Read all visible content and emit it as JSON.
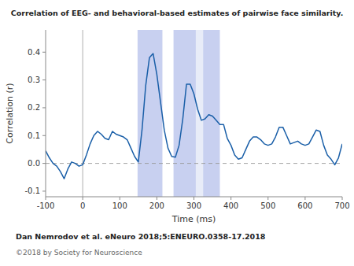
{
  "chart_data": {
    "type": "line",
    "title": "Correlation of EEG- and behavioral-based estimates of pairwise face similarity.",
    "xlabel": "Time (ms)",
    "ylabel": "Correlation (r)",
    "citation": "Dan Nemrodov et al. eNeuro 2018;5:ENEURO.0358-17.2018",
    "copyright": "©2018 by Society for Neuroscience",
    "xlim": [
      -100,
      700
    ],
    "ylim": [
      -0.12,
      0.48
    ],
    "xticks": [
      -100,
      0,
      100,
      200,
      300,
      400,
      500,
      600,
      700
    ],
    "yticks": [
      -0.1,
      {
        "value": 0.0,
        "label": "0.0"
      },
      0.1,
      0.2,
      0.3,
      0.4
    ],
    "grid": false,
    "color": "#1a5fa8",
    "shaded_regions": [
      {
        "x0": 148,
        "x1": 215,
        "color": "#c8d0f0"
      },
      {
        "x0": 245,
        "x1": 370,
        "color": "#c8d0f0"
      },
      {
        "x0": 305,
        "x1": 325,
        "color": "#e8ecf8"
      }
    ],
    "vline_x": 0,
    "hline_y": 0,
    "x": [
      -100,
      -90,
      -80,
      -70,
      -60,
      -50,
      -40,
      -30,
      -20,
      -10,
      0,
      10,
      20,
      30,
      40,
      50,
      60,
      70,
      80,
      90,
      100,
      110,
      120,
      130,
      140,
      150,
      160,
      170,
      180,
      190,
      200,
      210,
      220,
      230,
      240,
      250,
      260,
      270,
      280,
      290,
      300,
      310,
      320,
      330,
      340,
      350,
      360,
      370,
      380,
      390,
      400,
      410,
      420,
      430,
      440,
      450,
      460,
      470,
      480,
      490,
      500,
      510,
      520,
      530,
      540,
      550,
      560,
      570,
      580,
      590,
      600,
      610,
      620,
      630,
      640,
      650,
      660,
      670,
      680,
      690,
      700
    ],
    "values": [
      0.045,
      0.02,
      0.0,
      -0.01,
      -0.03,
      -0.055,
      -0.02,
      0.005,
      0.0,
      -0.01,
      -0.005,
      0.03,
      0.07,
      0.1,
      0.115,
      0.105,
      0.09,
      0.085,
      0.115,
      0.105,
      0.1,
      0.095,
      0.085,
      0.055,
      0.025,
      0.005,
      0.12,
      0.28,
      0.38,
      0.395,
      0.32,
      0.22,
      0.12,
      0.055,
      0.025,
      0.022,
      0.065,
      0.16,
      0.285,
      0.285,
      0.25,
      0.195,
      0.155,
      0.16,
      0.175,
      0.17,
      0.155,
      0.14,
      0.14,
      0.09,
      0.065,
      0.03,
      0.015,
      0.02,
      0.05,
      0.08,
      0.095,
      0.095,
      0.085,
      0.07,
      0.065,
      0.07,
      0.095,
      0.13,
      0.13,
      0.1,
      0.07,
      0.075,
      0.08,
      0.07,
      0.065,
      0.07,
      0.095,
      0.12,
      0.115,
      0.065,
      0.03,
      0.015,
      -0.005,
      0.02,
      0.07
    ]
  }
}
